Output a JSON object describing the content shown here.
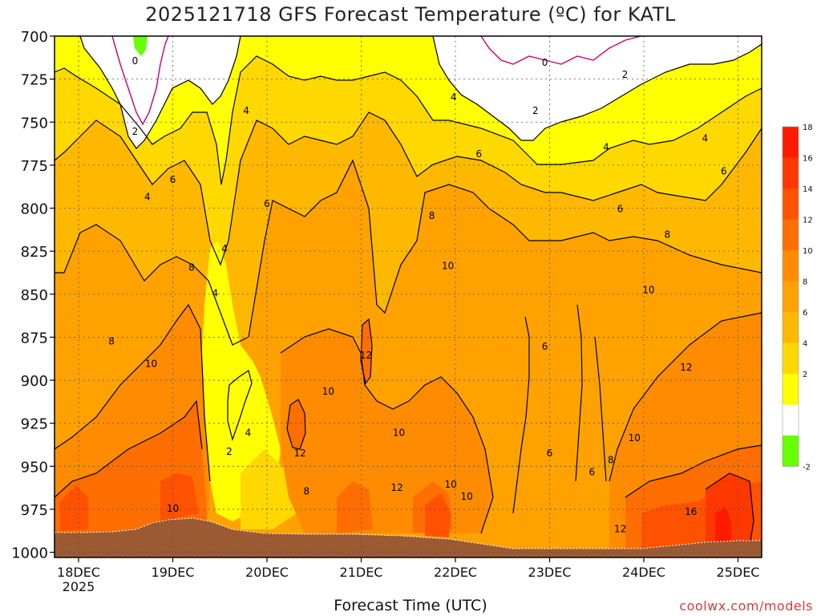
{
  "title": "2025121718 GFS Forecast Temperature (ºC) for KATL",
  "xlabel": "Forecast Time (UTC)",
  "credit": "coolwx.com/models",
  "chart_data": {
    "type": "heatmap",
    "title": "2025121718 GFS Forecast Temperature (ºC) for KATL",
    "xlabel": "Forecast Time (UTC)",
    "ylabel": "",
    "x_ticks": [
      "18DEC",
      "19DEC",
      "20DEC",
      "21DEC",
      "22DEC",
      "23DEC",
      "24DEC",
      "25DEC"
    ],
    "x_tick_year": "2025",
    "xlim": [
      -0.25,
      7.25
    ],
    "y_ticks": [
      700,
      725,
      750,
      775,
      800,
      825,
      850,
      875,
      900,
      925,
      950,
      975,
      1000
    ],
    "ylim": [
      700,
      1003
    ],
    "y_reversed": true,
    "grid": true,
    "colorbar": {
      "ticks": [
        18,
        16,
        14,
        12,
        10,
        8,
        6,
        4,
        2,
        -2
      ],
      "levels": [
        {
          "range": [
            18,
            20
          ],
          "color": "#ff1a00"
        },
        {
          "range": [
            16,
            18
          ],
          "color": "#ff3800"
        },
        {
          "range": [
            14,
            16
          ],
          "color": "#ff5200"
        },
        {
          "range": [
            12,
            14
          ],
          "color": "#ff6e00"
        },
        {
          "range": [
            10,
            12
          ],
          "color": "#ff8c00"
        },
        {
          "range": [
            8,
            10
          ],
          "color": "#ffa200"
        },
        {
          "range": [
            6,
            8
          ],
          "color": "#ffb800"
        },
        {
          "range": [
            4,
            6
          ],
          "color": "#ffd800"
        },
        {
          "range": [
            2,
            4
          ],
          "color": "#ffff00"
        },
        {
          "range": [
            0,
            2
          ],
          "color": "#ffffff"
        },
        {
          "range": [
            -2,
            0
          ],
          "color": "#66ff00"
        }
      ]
    },
    "contour_labels": [
      {
        "t": 0.6,
        "p": 714,
        "v": "0"
      },
      {
        "t": 0.6,
        "p": 755,
        "v": "2"
      },
      {
        "t": 0.73,
        "p": 793,
        "v": "4"
      },
      {
        "t": 0.35,
        "p": 877,
        "v": "8"
      },
      {
        "t": 0.77,
        "p": 890,
        "v": "10"
      },
      {
        "t": 1.0,
        "p": 783,
        "v": "6"
      },
      {
        "t": 1.2,
        "p": 834,
        "v": "8"
      },
      {
        "t": 1.0,
        "p": 974,
        "v": "10"
      },
      {
        "t": 1.55,
        "p": 823,
        "v": "4"
      },
      {
        "t": 1.45,
        "p": 849,
        "v": "4"
      },
      {
        "t": 1.6,
        "p": 941,
        "v": "2"
      },
      {
        "t": 1.8,
        "p": 930,
        "v": "4"
      },
      {
        "t": 1.78,
        "p": 743,
        "v": "4"
      },
      {
        "t": 2.0,
        "p": 797,
        "v": "6"
      },
      {
        "t": 2.35,
        "p": 942,
        "v": "12"
      },
      {
        "t": 2.42,
        "p": 964,
        "v": "8"
      },
      {
        "t": 2.65,
        "p": 906,
        "v": "10"
      },
      {
        "t": 3.05,
        "p": 885,
        "v": "12"
      },
      {
        "t": 3.4,
        "p": 930,
        "v": "10"
      },
      {
        "t": 3.38,
        "p": 962,
        "v": "12"
      },
      {
        "t": 3.75,
        "p": 804,
        "v": "8"
      },
      {
        "t": 3.92,
        "p": 833,
        "v": "10"
      },
      {
        "t": 3.95,
        "p": 960,
        "v": "10"
      },
      {
        "t": 4.12,
        "p": 967,
        "v": "10"
      },
      {
        "t": 3.98,
        "p": 735,
        "v": "4"
      },
      {
        "t": 4.25,
        "p": 768,
        "v": "6"
      },
      {
        "t": 4.95,
        "p": 715,
        "v": "0"
      },
      {
        "t": 4.85,
        "p": 743,
        "v": "2"
      },
      {
        "t": 4.95,
        "p": 880,
        "v": "6"
      },
      {
        "t": 5.0,
        "p": 942,
        "v": "6"
      },
      {
        "t": 5.45,
        "p": 953,
        "v": "6"
      },
      {
        "t": 5.6,
        "p": 764,
        "v": "4"
      },
      {
        "t": 5.8,
        "p": 722,
        "v": "2"
      },
      {
        "t": 5.75,
        "p": 800,
        "v": "6"
      },
      {
        "t": 5.65,
        "p": 946,
        "v": "8"
      },
      {
        "t": 5.75,
        "p": 986,
        "v": "12"
      },
      {
        "t": 5.9,
        "p": 933,
        "v": "10"
      },
      {
        "t": 6.05,
        "p": 847,
        "v": "10"
      },
      {
        "t": 6.25,
        "p": 815,
        "v": "8"
      },
      {
        "t": 6.65,
        "p": 759,
        "v": "4"
      },
      {
        "t": 6.85,
        "p": 778,
        "v": "6"
      },
      {
        "t": 6.45,
        "p": 892,
        "v": "12"
      },
      {
        "t": 6.5,
        "p": 976,
        "v": "16"
      }
    ]
  }
}
